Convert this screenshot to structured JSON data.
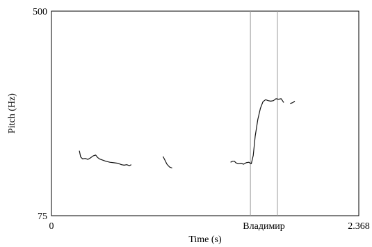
{
  "chart_data": {
    "type": "line",
    "title": "",
    "xlabel": "Time (s)",
    "ylabel": "Pitch (Hz)",
    "xlim": [
      0,
      2.368
    ],
    "ylim": [
      75,
      500
    ],
    "x_tick_labels": [
      "0",
      "2.368"
    ],
    "y_tick_labels": [
      "75",
      "500"
    ],
    "grid": false,
    "interval_label": "Владимир",
    "interval_bounds": [
      1.533,
      1.741
    ],
    "series": [
      {
        "segments": [
          [
            [
              0.215,
              210
            ],
            [
              0.225,
              197
            ],
            [
              0.24,
              193
            ],
            [
              0.26,
              194
            ],
            [
              0.28,
              192
            ],
            [
              0.3,
              195
            ],
            [
              0.32,
              199
            ],
            [
              0.34,
              201
            ],
            [
              0.355,
              196
            ],
            [
              0.37,
              193
            ],
            [
              0.39,
              191
            ],
            [
              0.42,
              188
            ],
            [
              0.45,
              186
            ],
            [
              0.48,
              185
            ],
            [
              0.51,
              184
            ],
            [
              0.54,
              181
            ],
            [
              0.56,
              180
            ],
            [
              0.58,
              181
            ],
            [
              0.6,
              179
            ],
            [
              0.615,
              181
            ]
          ],
          [
            [
              0.86,
              198
            ],
            [
              0.875,
              190
            ],
            [
              0.89,
              182
            ],
            [
              0.91,
              176
            ],
            [
              0.93,
              174
            ]
          ],
          [
            [
              1.38,
              186
            ],
            [
              1.395,
              188
            ],
            [
              1.41,
              188
            ],
            [
              1.42,
              185
            ],
            [
              1.44,
              183
            ],
            [
              1.46,
              184
            ],
            [
              1.48,
              182
            ],
            [
              1.5,
              185
            ],
            [
              1.52,
              186
            ],
            [
              1.54,
              183
            ],
            [
              1.555,
              200
            ],
            [
              1.57,
              240
            ],
            [
              1.59,
              275
            ],
            [
              1.61,
              298
            ],
            [
              1.63,
              312
            ],
            [
              1.65,
              316
            ],
            [
              1.67,
              314
            ],
            [
              1.69,
              313
            ],
            [
              1.71,
              314
            ],
            [
              1.73,
              318
            ],
            [
              1.75,
              317
            ],
            [
              1.77,
              318
            ],
            [
              1.79,
              310
            ]
          ],
          [
            [
              1.84,
              308
            ],
            [
              1.86,
              310
            ],
            [
              1.875,
              313
            ]
          ]
        ]
      }
    ]
  }
}
